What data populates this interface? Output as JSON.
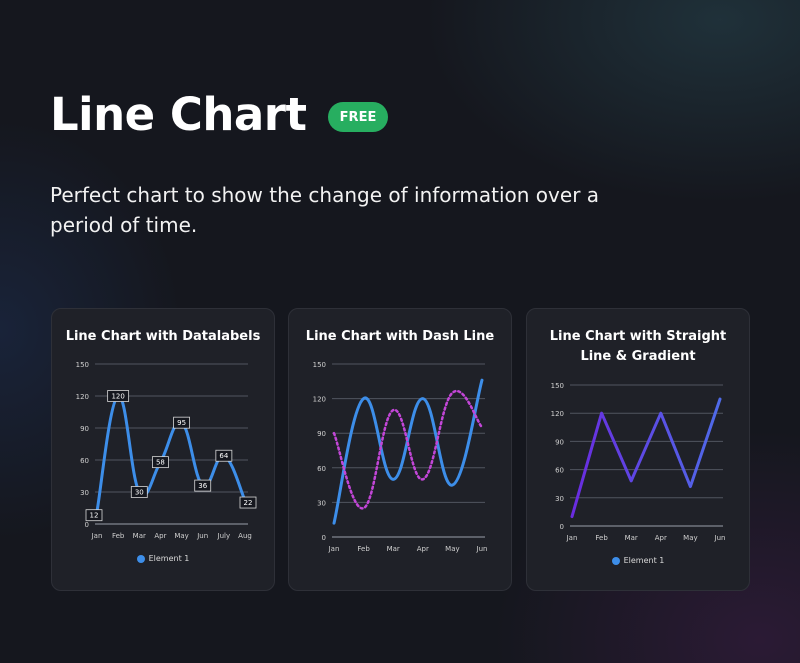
{
  "header": {
    "title": "Line Chart",
    "badge": "FREE",
    "subtitle": "Perfect chart  to show the change of information over a period of time."
  },
  "colors": {
    "badge": "#27ae60",
    "blue": "#3d8ee9",
    "magenta": "#c346d8",
    "grad_start": "#6a2be0",
    "grad_end": "#4f6be8"
  },
  "cards": [
    {
      "title": "Line Chart with Datalabels",
      "legend": "Element 1",
      "chart_data": {
        "type": "line",
        "style": "curved-with-datalabels",
        "categories": [
          "Jan",
          "Feb",
          "Mar",
          "Apr",
          "May",
          "Jun",
          "July",
          "Aug"
        ],
        "yticks": [
          "0",
          "30",
          "60",
          "90",
          "120",
          "150"
        ],
        "ylim": [
          0,
          150
        ],
        "series": [
          {
            "name": "Element 1",
            "values": [
              12,
              120,
              30,
              58,
              95,
              36,
              64,
              22
            ],
            "color": "#3d8ee9"
          }
        ]
      }
    },
    {
      "title": "Line Chart with Dash Line",
      "legend": "",
      "chart_data": {
        "type": "line",
        "style": "curved-dashed",
        "categories": [
          "Jan",
          "Feb",
          "Mar",
          "Apr",
          "May",
          "Jun"
        ],
        "yticks": [
          "0",
          "30",
          "60",
          "90",
          "120",
          "150"
        ],
        "ylim": [
          0,
          150
        ],
        "series": [
          {
            "values": [
              12,
              120,
              50,
              120,
              45,
              136
            ],
            "color": "#3d8ee9",
            "dashed": false
          },
          {
            "values": [
              90,
              25,
              110,
              50,
              125,
              95
            ],
            "color": "#c346d8",
            "dashed": true
          }
        ]
      }
    },
    {
      "title": "Line Chart with Straight Line & Gradient",
      "legend": "Element 1",
      "chart_data": {
        "type": "line",
        "style": "straight-gradient",
        "categories": [
          "Jan",
          "Feb",
          "Mar",
          "Apr",
          "May",
          "Jun"
        ],
        "yticks": [
          "0",
          "30",
          "60",
          "90",
          "120",
          "150"
        ],
        "ylim": [
          0,
          150
        ],
        "series": [
          {
            "name": "Element 1",
            "values": [
              10,
              120,
              48,
              120,
              42,
              135
            ]
          }
        ]
      }
    }
  ]
}
